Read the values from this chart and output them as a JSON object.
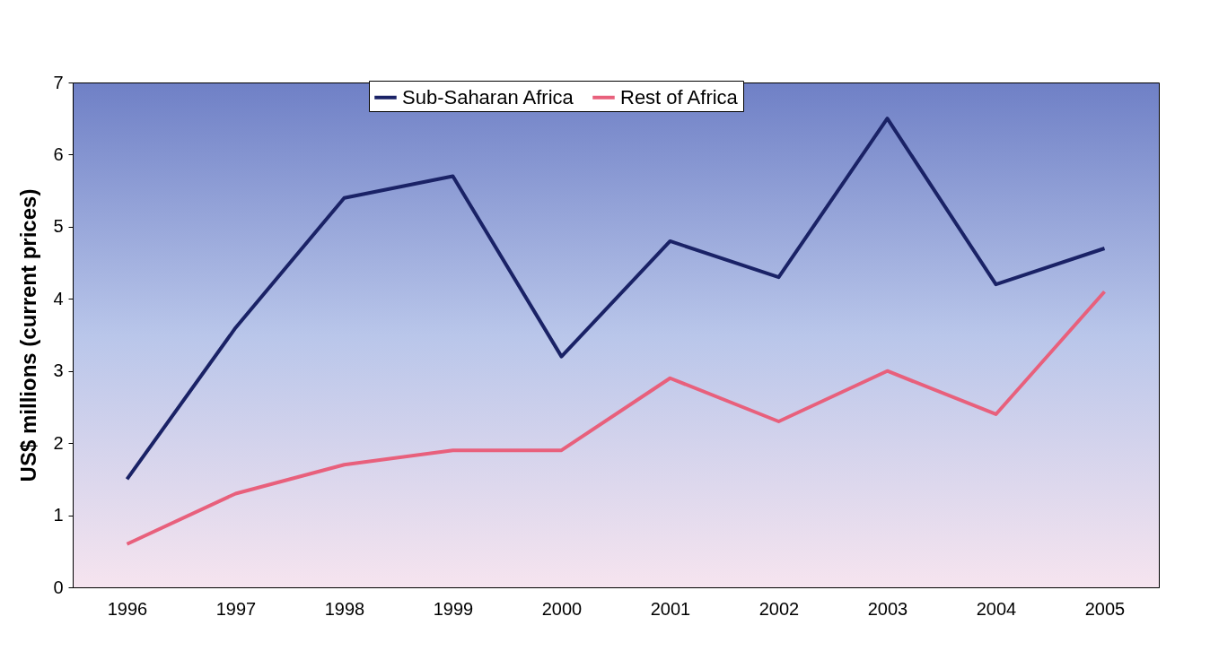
{
  "chart_data": {
    "type": "line",
    "ylabel": "US$ millions (current prices)",
    "categories": [
      "1996",
      "1997",
      "1998",
      "1999",
      "2000",
      "2001",
      "2002",
      "2003",
      "2004",
      "2005"
    ],
    "series": [
      {
        "name": "Sub-Saharan Africa",
        "color": "#1a2266",
        "values": [
          1.5,
          3.6,
          5.4,
          5.7,
          3.2,
          4.8,
          4.3,
          6.5,
          4.2,
          4.7
        ]
      },
      {
        "name": "Rest of Africa",
        "color": "#e8607c",
        "values": [
          0.6,
          1.3,
          1.7,
          1.9,
          1.9,
          2.9,
          2.3,
          3.0,
          2.4,
          4.1
        ]
      }
    ],
    "ylim": [
      0,
      7
    ],
    "yticks": [
      0,
      1,
      2,
      3,
      4,
      5,
      6,
      7
    ],
    "grid": false,
    "legend": "top",
    "marker": "none",
    "line_style": "solid"
  }
}
